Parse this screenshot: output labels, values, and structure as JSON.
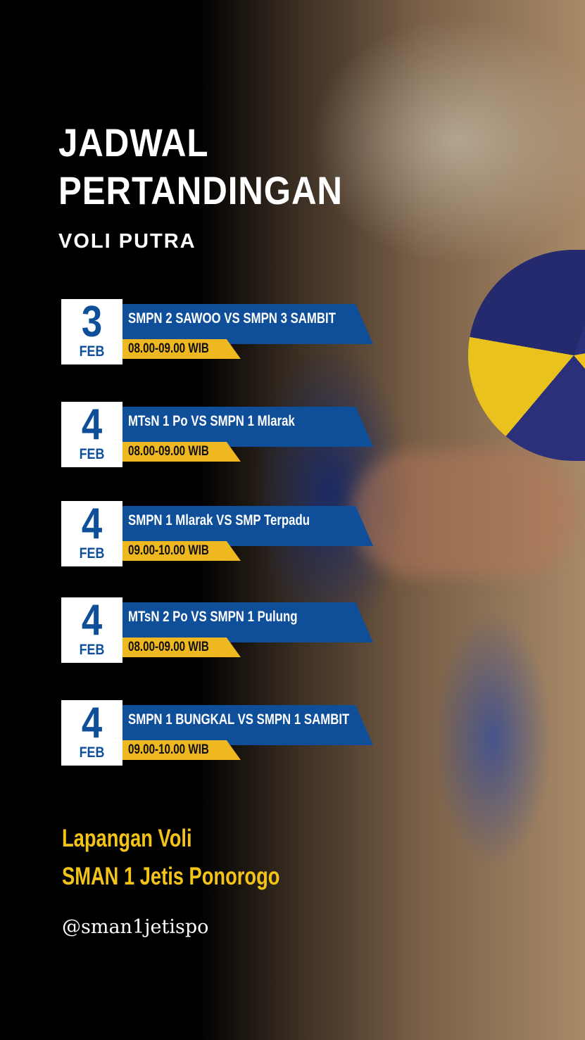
{
  "title_line1": "JADWAL",
  "title_line2": "PERTANDINGAN",
  "subtitle": "VOLI PUTRA",
  "matches": [
    {
      "day": "3",
      "month": "FEB",
      "teams": "SMPN 2 SAWOO VS SMPN 3 SAMBIT",
      "time": "08.00-09.00 WIB"
    },
    {
      "day": "4",
      "month": "FEB",
      "teams": "MTsN 1 Po VS SMPN 1 Mlarak",
      "time": "08.00-09.00 WIB"
    },
    {
      "day": "4",
      "month": "FEB",
      "teams": "SMPN 1 Mlarak VS SMP Terpadu",
      "time": "09.00-10.00 WIB"
    },
    {
      "day": "4",
      "month": "FEB",
      "teams": "MTsN 2 Po VS SMPN 1 Pulung",
      "time": "08.00-09.00 WIB"
    },
    {
      "day": "4",
      "month": "FEB",
      "teams": "SMPN 1 BUNGKAL VS SMPN 1 SAMBIT",
      "time": "09.00-10.00 WIB"
    }
  ],
  "venue_line1": "Lapangan Voli",
  "venue_line2": "SMAN 1 Jetis Ponorogo",
  "handle": "@sman1jetispo",
  "colors": {
    "blue": "#0f4f9a",
    "yellow": "#efb820",
    "venue_text": "#f3c31a"
  }
}
